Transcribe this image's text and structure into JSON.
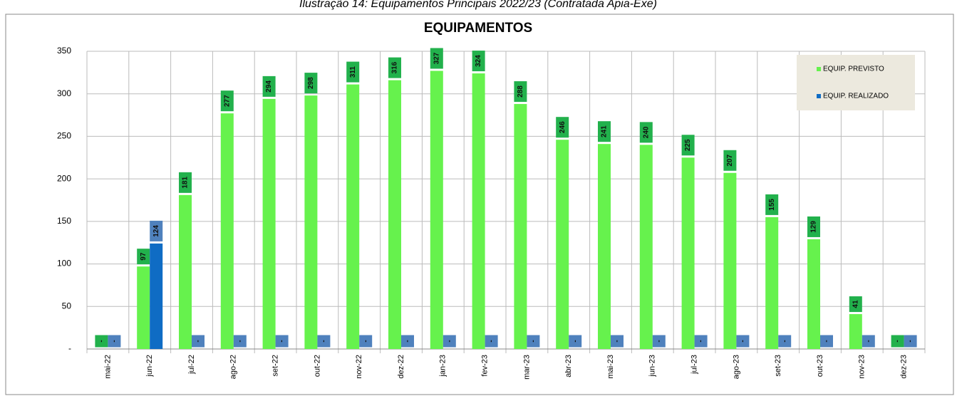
{
  "caption": "Ilustração 14: Equipamentos Principais 2022/23 (Contratada Apia-Exe)",
  "chart_data": {
    "type": "bar",
    "title": "EQUIPAMENTOS",
    "categories": [
      "mai-22",
      "jun-22",
      "jul-22",
      "ago-22",
      "set-22",
      "out-22",
      "nov-22",
      "dez-22",
      "jan-23",
      "fev-23",
      "mar-23",
      "abr-23",
      "mai-23",
      "jun-23",
      "jul-23",
      "ago-23",
      "set-23",
      "out-23",
      "nov-23",
      "dez-23"
    ],
    "series": [
      {
        "name": "EQUIP. PREVISTO",
        "color": "#66f24d",
        "label_color": "#22b14c",
        "values": [
          0,
          97,
          181,
          277,
          294,
          298,
          311,
          316,
          327,
          324,
          288,
          246,
          241,
          240,
          225,
          207,
          155,
          129,
          41,
          0
        ],
        "value_labels": [
          "-",
          "97",
          "181",
          "277",
          "294",
          "298",
          "311",
          "316",
          "327",
          "324",
          "288",
          "246",
          "241",
          "240",
          "225",
          "207",
          "155",
          "129",
          "41",
          "-"
        ]
      },
      {
        "name": "EQUIP. REALIZADO",
        "color": "#0f6cc4",
        "label_color": "#4f81bd",
        "values": [
          0,
          124,
          0,
          0,
          0,
          0,
          0,
          0,
          0,
          0,
          0,
          0,
          0,
          0,
          0,
          0,
          0,
          0,
          0,
          0
        ],
        "value_labels": [
          "-",
          "124",
          "-",
          "-",
          "-",
          "-",
          "-",
          "-",
          "-",
          "-",
          "-",
          "-",
          "-",
          "-",
          "-",
          "-",
          "-",
          "-",
          "-",
          "-"
        ]
      }
    ],
    "ylim": [
      0,
      350
    ],
    "yticks": [
      {
        "value": 0,
        "label": "-"
      },
      50,
      100,
      150,
      200,
      250,
      300,
      350
    ],
    "grid": true,
    "legend": "upper right"
  }
}
